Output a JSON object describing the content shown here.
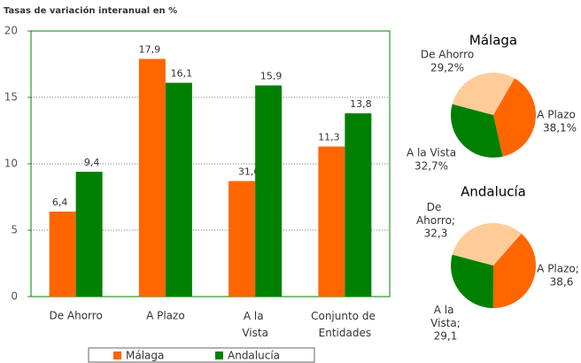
{
  "chart_data": [
    {
      "type": "bar",
      "title": "Tasas de variación interanual en %",
      "categories": [
        "De Ahorro",
        "A Plazo",
        "A la Vista",
        "Conjunto de Entidades"
      ],
      "series": [
        {
          "name": "Málaga",
          "color": "#ff6600",
          "values": [
            6.4,
            17.9,
            8.7,
            11.3
          ],
          "value_labels": [
            "6,4",
            "17,9",
            null,
            "11,3"
          ]
        },
        {
          "name": "Andalucía",
          "color": "#008000",
          "values": [
            9.4,
            16.1,
            15.9,
            13.8
          ],
          "value_labels": [
            "9,4",
            "16,1",
            "15,9",
            "13,8"
          ]
        }
      ],
      "annotations": [
        "31,6"
      ],
      "ylim": [
        0,
        20
      ],
      "yticks": [
        0,
        5,
        10,
        15,
        20
      ],
      "grid": true,
      "legend": "bottom"
    },
    {
      "type": "pie",
      "title": "Málaga",
      "categories": [
        "De Ahorro",
        "A Plazo",
        "A la Vista"
      ],
      "values": [
        29.2,
        38.1,
        32.7
      ],
      "value_labels": [
        "29,2%",
        "38,1%",
        "32,7%"
      ],
      "colors": [
        "#ffcc99",
        "#ff6600",
        "#008000"
      ]
    },
    {
      "type": "pie",
      "title": "Andalucía",
      "categories": [
        "De Ahorro;",
        "A Plazo;",
        "A la Vista;"
      ],
      "values": [
        32.3,
        38.6,
        29.1
      ],
      "value_labels": [
        "32,3",
        "38,6",
        "29,1"
      ],
      "colors": [
        "#ffcc99",
        "#ff6600",
        "#008000"
      ]
    }
  ]
}
